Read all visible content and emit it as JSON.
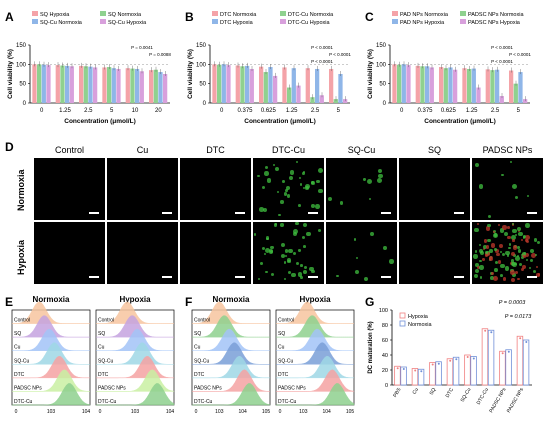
{
  "panels": {
    "A": "A",
    "B": "B",
    "C": "C",
    "D": "D",
    "E": "E",
    "F": "F",
    "G": "G"
  },
  "chart_data": [
    {
      "id": "A",
      "type": "bar",
      "ylabel": "Cell viability (%)",
      "xlabel": "Concentration (μmol/L)",
      "ylim": [
        0,
        150
      ],
      "yticks": [
        "0",
        "50",
        "100",
        "150"
      ],
      "categories": [
        "0",
        "1.25",
        "2.5",
        "5",
        "10",
        "20"
      ],
      "series": [
        {
          "name": "SQ Hypoxia",
          "color": "#f4a3a8",
          "values": [
            100,
            98,
            96,
            92,
            90,
            85
          ]
        },
        {
          "name": "SQ Normoxia",
          "color": "#8fd18f",
          "values": [
            100,
            97,
            95,
            93,
            89,
            86
          ]
        },
        {
          "name": "SQ-Cu Normoxia",
          "color": "#8fb6e8",
          "values": [
            99,
            96,
            94,
            90,
            88,
            80
          ]
        },
        {
          "name": "SQ-Cu Hypoxia",
          "color": "#d8a0dc",
          "values": [
            98,
            95,
            92,
            88,
            82,
            75
          ]
        }
      ],
      "annotations": [
        "P = 0.0041",
        "P = 0.0088"
      ]
    },
    {
      "id": "B",
      "type": "bar",
      "ylabel": "Cell viability (%)",
      "xlabel": "Concentration (μmol/L)",
      "ylim": [
        0,
        150
      ],
      "yticks": [
        "0",
        "50",
        "100",
        "150"
      ],
      "categories": [
        "0",
        "0.375",
        "0.625",
        "1.25",
        "2.5",
        "5"
      ],
      "series": [
        {
          "name": "DTC Normoxia",
          "color": "#f4a3a8",
          "values": [
            100,
            97,
            94,
            92,
            90,
            88
          ]
        },
        {
          "name": "DTC-Cu Normoxia",
          "color": "#8fd18f",
          "values": [
            99,
            95,
            80,
            40,
            15,
            10
          ]
        },
        {
          "name": "DTC Hypoxia",
          "color": "#8fb6e8",
          "values": [
            100,
            96,
            93,
            90,
            88,
            75
          ]
        },
        {
          "name": "DTC-Cu Hypoxia",
          "color": "#d8a0dc",
          "values": [
            98,
            88,
            70,
            45,
            20,
            10
          ]
        }
      ],
      "annotations": [
        "P < 0.0001",
        "P < 0.0001",
        "P < 0.0001"
      ]
    },
    {
      "id": "C",
      "type": "bar",
      "ylabel": "Cell viability (%)",
      "xlabel": "Concentration (μmol/L)",
      "ylim": [
        0,
        150
      ],
      "yticks": [
        "0",
        "50",
        "100",
        "150"
      ],
      "categories": [
        "0",
        "0.375",
        "0.625",
        "1.25",
        "2.5",
        "5"
      ],
      "series": [
        {
          "name": "PAD NPs Normoxia",
          "color": "#f4a3a8",
          "values": [
            100,
            96,
            93,
            90,
            87,
            84
          ]
        },
        {
          "name": "PADSC NPs Normoxia",
          "color": "#8fd18f",
          "values": [
            99,
            95,
            90,
            88,
            85,
            50
          ]
        },
        {
          "name": "PAD NPs Hypoxia",
          "color": "#8fb6e8",
          "values": [
            100,
            95,
            92,
            89,
            86,
            80
          ]
        },
        {
          "name": "PADSC NPs Hypoxia",
          "color": "#d8a0dc",
          "values": [
            98,
            92,
            86,
            40,
            18,
            10
          ]
        }
      ],
      "annotations": [
        "P < 0.0001",
        "P < 0.0001",
        "P < 0.0001"
      ]
    },
    {
      "id": "E",
      "type": "area",
      "xticks": [
        "0",
        "10^3",
        "10^4"
      ],
      "groups": [
        {
          "title": "Normoxia",
          "labels": [
            "Control",
            "SQ",
            "Cu",
            "SQ-Cu",
            "DTC",
            "PADSC NPs",
            "DTC-Cu"
          ]
        },
        {
          "title": "Hypoxia",
          "labels": [
            "Control",
            "SQ",
            "Cu",
            "SQ-Cu",
            "DTC",
            "PADSC NPs",
            "DTC-Cu"
          ]
        }
      ]
    },
    {
      "id": "F",
      "type": "area",
      "xticks": [
        "0",
        "10^3",
        "10^4",
        "10^5"
      ],
      "groups": [
        {
          "title": "Normoxia",
          "labels": [
            "Control",
            "SQ",
            "Cu",
            "SQ-Cu",
            "DTC",
            "PADSC NPs",
            "DTC-Cu"
          ]
        },
        {
          "title": "Hypoxia",
          "labels": [
            "Control",
            "SQ",
            "Cu",
            "SQ-Cu",
            "DTC",
            "PADSC NPs",
            "DTC-Cu"
          ]
        }
      ]
    },
    {
      "id": "G",
      "type": "bar",
      "ylabel": "DC maturation (%)",
      "ylim": [
        0,
        100
      ],
      "yticks": [
        "0",
        "20",
        "40",
        "60",
        "80",
        "100"
      ],
      "categories": [
        "PBS",
        "Cu",
        "SQ",
        "DTC",
        "SQ-Cu",
        "DTC-Cu",
        "PADSC NPs",
        "PADSC NPs"
      ],
      "series": [
        {
          "name": "Hypoxia",
          "color": "#f08080",
          "values": [
            25,
            22,
            30,
            35,
            40,
            75,
            45,
            65
          ]
        },
        {
          "name": "Normoxia",
          "color": "#6f8fd8",
          "values": [
            24,
            21,
            31,
            37,
            38,
            73,
            47,
            60
          ]
        }
      ],
      "annotations": [
        "P = 0.0003",
        "P = 0.0173"
      ]
    }
  ],
  "microscopy": {
    "columns": [
      "Control",
      "Cu",
      "DTC",
      "DTC-Cu",
      "SQ-Cu",
      "SQ",
      "PADSC NPs"
    ],
    "rows": [
      "Normoxia",
      "Hypoxia"
    ]
  }
}
